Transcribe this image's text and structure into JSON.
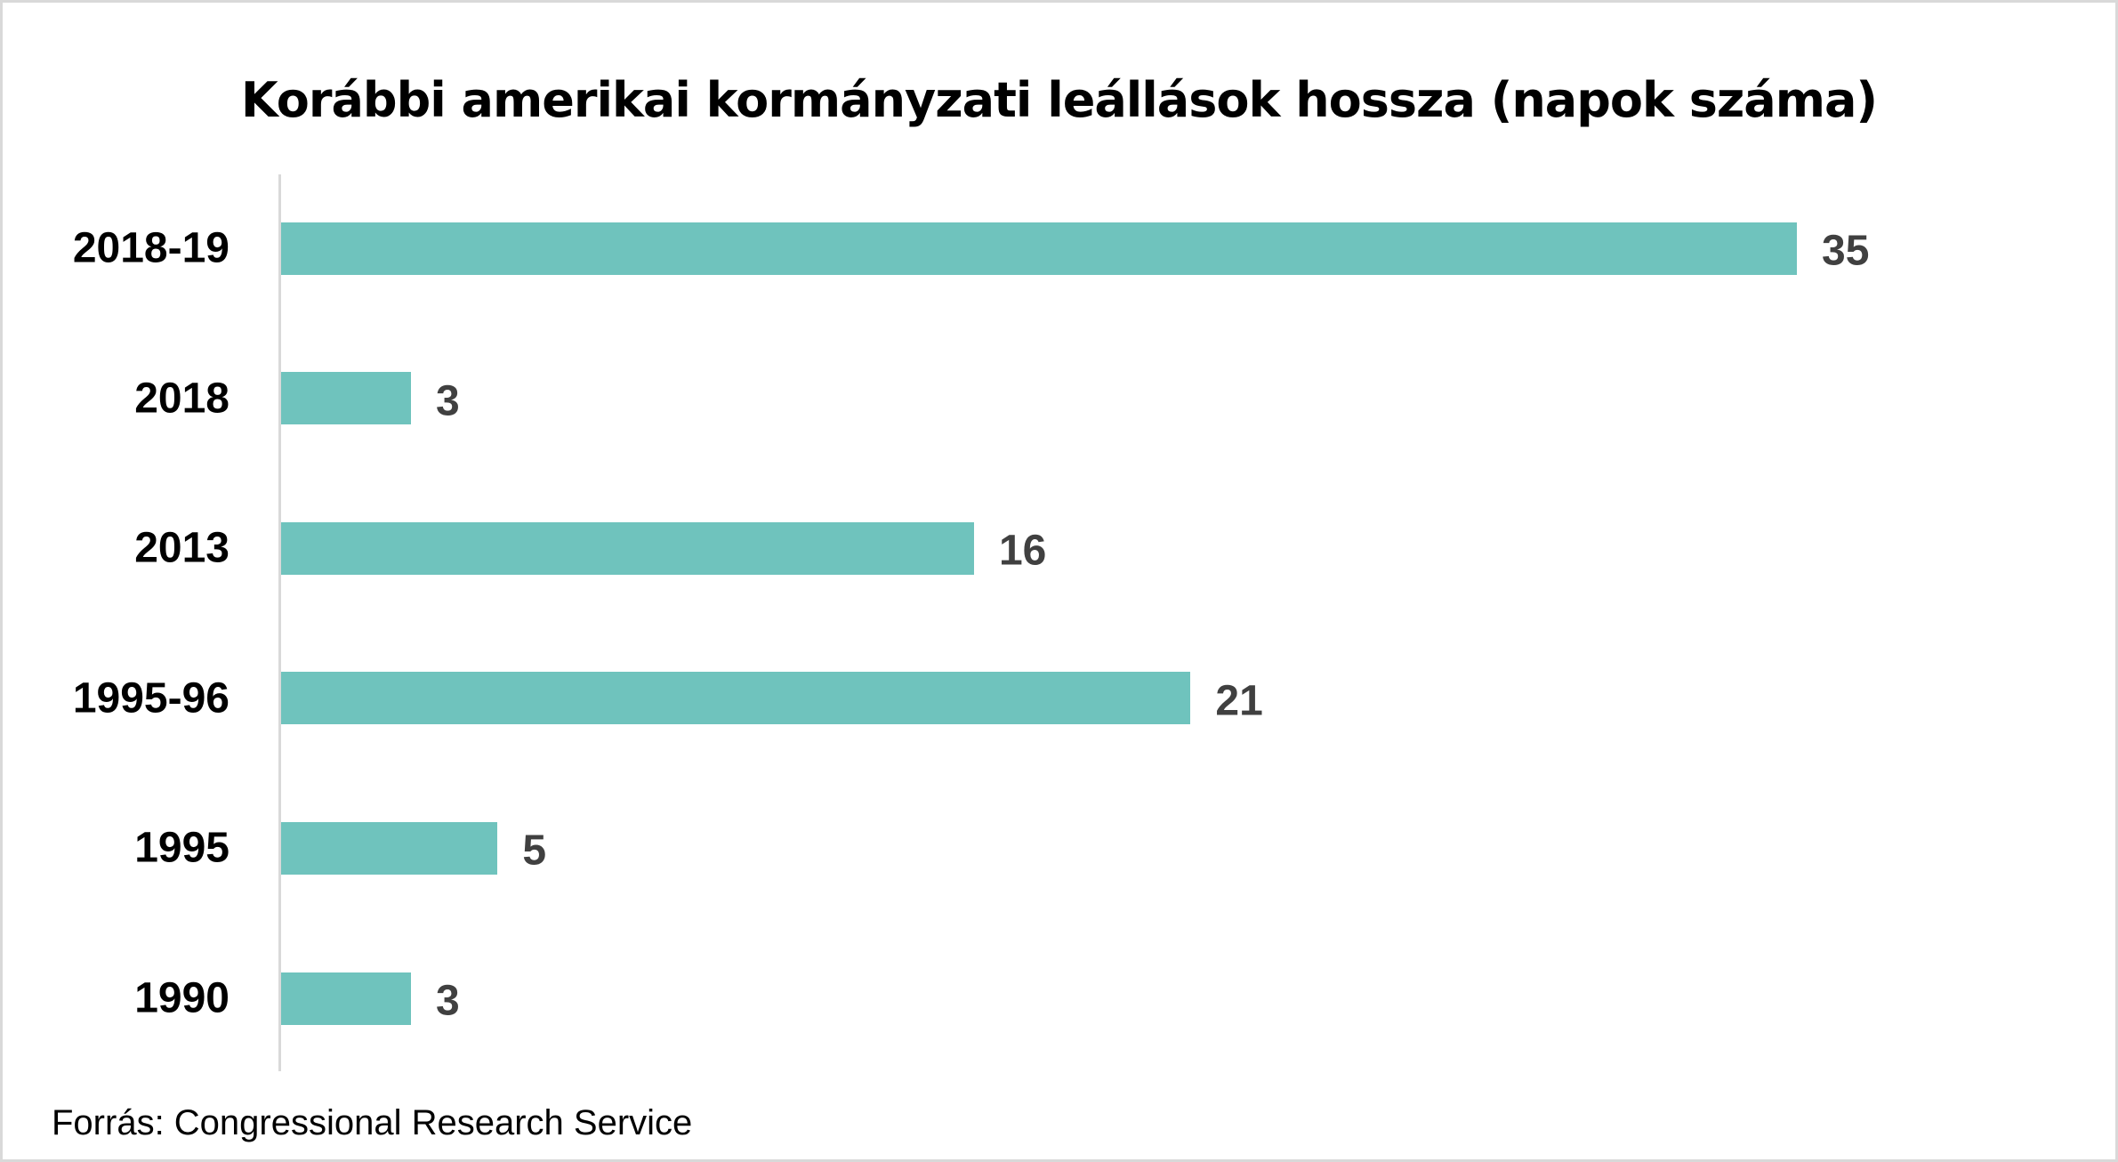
{
  "chart_data": {
    "type": "bar",
    "orientation": "horizontal",
    "title": "Korábbi amerikai kormányzati leállások hossza (napok száma)",
    "categories": [
      "2018-19",
      "2018",
      "2013",
      "1995-96",
      "1995",
      "1990"
    ],
    "values": [
      35,
      3,
      16,
      21,
      5,
      3
    ],
    "value_labels": [
      "35",
      "3",
      "16",
      "21",
      "5",
      "3"
    ],
    "xlabel": "",
    "ylabel": "",
    "xlim": [
      0,
      35
    ],
    "grid": false,
    "bar_color": "#6fc3bd",
    "source": "Forrás: Congressional Research Service"
  }
}
